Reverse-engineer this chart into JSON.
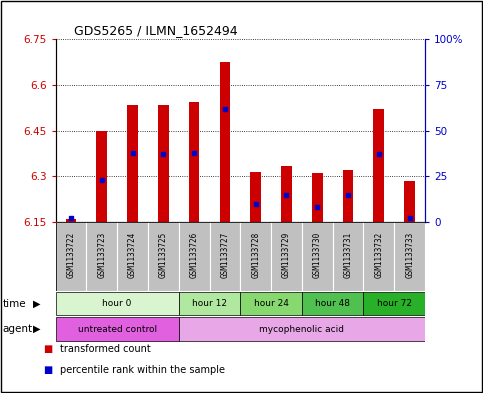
{
  "title": "GDS5265 / ILMN_1652494",
  "samples": [
    "GSM1133722",
    "GSM1133723",
    "GSM1133724",
    "GSM1133725",
    "GSM1133726",
    "GSM1133727",
    "GSM1133728",
    "GSM1133729",
    "GSM1133730",
    "GSM1133731",
    "GSM1133732",
    "GSM1133733"
  ],
  "bar_base": 6.15,
  "transformed_count": [
    6.16,
    6.45,
    6.535,
    6.535,
    6.545,
    6.675,
    6.315,
    6.335,
    6.31,
    6.32,
    6.52,
    6.285
  ],
  "percentile_rank": [
    2,
    23,
    38,
    37,
    38,
    62,
    10,
    15,
    8,
    15,
    37,
    2
  ],
  "ylim": [
    6.15,
    6.75
  ],
  "ylim_right": [
    0,
    100
  ],
  "yticks_left": [
    6.15,
    6.3,
    6.45,
    6.6,
    6.75
  ],
  "yticks_right": [
    0,
    25,
    50,
    75,
    100
  ],
  "ytick_labels_left": [
    "6.15",
    "6.3",
    "6.45",
    "6.6",
    "6.75"
  ],
  "ytick_labels_right": [
    "0",
    "25",
    "50",
    "75",
    "100%"
  ],
  "bar_color": "#cc0000",
  "percentile_color": "#0000cc",
  "background_samples": "#c0c0c0",
  "time_groups": [
    {
      "label": "hour 0",
      "cols": [
        0,
        1,
        2,
        3
      ],
      "color": "#d8f5d0"
    },
    {
      "label": "hour 12",
      "cols": [
        4,
        5
      ],
      "color": "#b0e8a0"
    },
    {
      "label": "hour 24",
      "cols": [
        6,
        7
      ],
      "color": "#88d870"
    },
    {
      "label": "hour 48",
      "cols": [
        8,
        9
      ],
      "color": "#50c050"
    },
    {
      "label": "hour 72",
      "cols": [
        10,
        11
      ],
      "color": "#28b028"
    }
  ],
  "agent_groups": [
    {
      "label": "untreated control",
      "cols": [
        0,
        1,
        2,
        3
      ],
      "color": "#e060e0"
    },
    {
      "label": "mycophenolic acid",
      "cols": [
        4,
        5,
        6,
        7,
        8,
        9,
        10,
        11
      ],
      "color": "#e8a8e8"
    }
  ],
  "time_row_label": "time",
  "agent_row_label": "agent",
  "legend_items": [
    {
      "color": "#cc0000",
      "label": "transformed count"
    },
    {
      "color": "#0000cc",
      "label": "percentile rank within the sample"
    }
  ],
  "title_color_left": "#cc0000",
  "title_color_right": "#0000cc",
  "bar_width": 0.35
}
